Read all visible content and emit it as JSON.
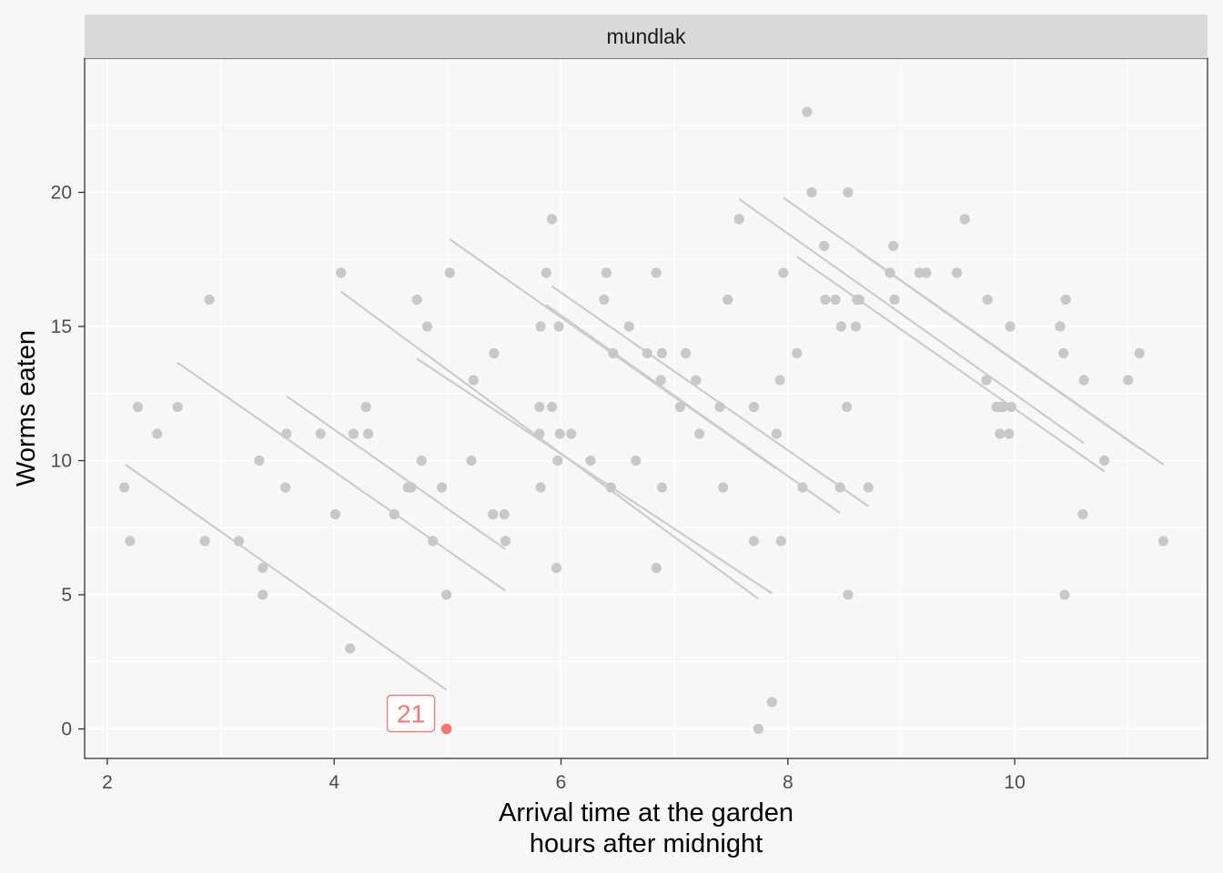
{
  "chart_data": {
    "type": "scatter",
    "facet": "mundlak",
    "xlabel": "Arrival time at the garden",
    "xlabel_sub": "hours after midnight",
    "ylabel": "Worms eaten",
    "xlim": [
      1.8,
      11.7
    ],
    "ylim": [
      -1.1,
      25.0
    ],
    "x_ticks": [
      2,
      4,
      6,
      8,
      10
    ],
    "y_ticks": [
      0,
      5,
      10,
      15,
      20
    ],
    "grid": true,
    "colors": {
      "point": "#c8c8c8",
      "line": "#cccccc",
      "highlight": "#f8766d",
      "panel": "#f7f7f7",
      "strip": "#d9d9d9",
      "grid": "#ffffff"
    },
    "points": [
      {
        "x": 2.15,
        "y": 9
      },
      {
        "x": 2.2,
        "y": 7
      },
      {
        "x": 2.27,
        "y": 12
      },
      {
        "x": 2.44,
        "y": 11
      },
      {
        "x": 2.62,
        "y": 12
      },
      {
        "x": 2.86,
        "y": 7
      },
      {
        "x": 2.9,
        "y": 16
      },
      {
        "x": 3.16,
        "y": 7
      },
      {
        "x": 3.34,
        "y": 10
      },
      {
        "x": 3.37,
        "y": 6
      },
      {
        "x": 3.37,
        "y": 5
      },
      {
        "x": 3.57,
        "y": 9
      },
      {
        "x": 3.58,
        "y": 11
      },
      {
        "x": 3.88,
        "y": 11
      },
      {
        "x": 4.01,
        "y": 8
      },
      {
        "x": 4.06,
        "y": 17
      },
      {
        "x": 4.14,
        "y": 3
      },
      {
        "x": 4.17,
        "y": 11
      },
      {
        "x": 4.28,
        "y": 12
      },
      {
        "x": 4.3,
        "y": 11
      },
      {
        "x": 4.53,
        "y": 8
      },
      {
        "x": 4.65,
        "y": 9
      },
      {
        "x": 4.68,
        "y": 9
      },
      {
        "x": 4.73,
        "y": 16
      },
      {
        "x": 4.77,
        "y": 10
      },
      {
        "x": 4.82,
        "y": 15
      },
      {
        "x": 4.87,
        "y": 7
      },
      {
        "x": 4.95,
        "y": 9
      },
      {
        "x": 4.99,
        "y": 5
      },
      {
        "x": 5.02,
        "y": 17
      },
      {
        "x": 5.21,
        "y": 10
      },
      {
        "x": 5.23,
        "y": 13
      },
      {
        "x": 5.4,
        "y": 8
      },
      {
        "x": 5.41,
        "y": 14
      },
      {
        "x": 5.5,
        "y": 8
      },
      {
        "x": 5.51,
        "y": 7
      },
      {
        "x": 5.81,
        "y": 12
      },
      {
        "x": 5.81,
        "y": 11
      },
      {
        "x": 5.82,
        "y": 15
      },
      {
        "x": 5.82,
        "y": 9
      },
      {
        "x": 5.87,
        "y": 17
      },
      {
        "x": 5.92,
        "y": 19
      },
      {
        "x": 5.92,
        "y": 12
      },
      {
        "x": 5.96,
        "y": 6
      },
      {
        "x": 5.97,
        "y": 10
      },
      {
        "x": 5.98,
        "y": 15
      },
      {
        "x": 5.99,
        "y": 11
      },
      {
        "x": 6.09,
        "y": 11
      },
      {
        "x": 6.26,
        "y": 10
      },
      {
        "x": 6.38,
        "y": 16
      },
      {
        "x": 6.4,
        "y": 17
      },
      {
        "x": 6.44,
        "y": 9
      },
      {
        "x": 6.46,
        "y": 14
      },
      {
        "x": 6.6,
        "y": 15
      },
      {
        "x": 6.66,
        "y": 10
      },
      {
        "x": 6.76,
        "y": 14
      },
      {
        "x": 6.84,
        "y": 17
      },
      {
        "x": 6.84,
        "y": 6
      },
      {
        "x": 6.88,
        "y": 13
      },
      {
        "x": 6.89,
        "y": 9
      },
      {
        "x": 6.89,
        "y": 14
      },
      {
        "x": 7.05,
        "y": 12
      },
      {
        "x": 7.1,
        "y": 14
      },
      {
        "x": 7.19,
        "y": 13
      },
      {
        "x": 7.22,
        "y": 11
      },
      {
        "x": 7.4,
        "y": 12
      },
      {
        "x": 7.43,
        "y": 9
      },
      {
        "x": 7.47,
        "y": 16
      },
      {
        "x": 7.57,
        "y": 19
      },
      {
        "x": 7.7,
        "y": 7
      },
      {
        "x": 7.7,
        "y": 12
      },
      {
        "x": 7.74,
        "y": 0
      },
      {
        "x": 7.86,
        "y": 1
      },
      {
        "x": 7.9,
        "y": 11
      },
      {
        "x": 7.93,
        "y": 13
      },
      {
        "x": 7.94,
        "y": 7
      },
      {
        "x": 7.96,
        "y": 17
      },
      {
        "x": 8.08,
        "y": 14
      },
      {
        "x": 8.13,
        "y": 9
      },
      {
        "x": 8.17,
        "y": 23
      },
      {
        "x": 8.21,
        "y": 20
      },
      {
        "x": 8.32,
        "y": 18
      },
      {
        "x": 8.33,
        "y": 16
      },
      {
        "x": 8.42,
        "y": 16
      },
      {
        "x": 8.46,
        "y": 9
      },
      {
        "x": 8.47,
        "y": 15
      },
      {
        "x": 8.52,
        "y": 12
      },
      {
        "x": 8.53,
        "y": 20
      },
      {
        "x": 8.53,
        "y": 5
      },
      {
        "x": 8.6,
        "y": 15
      },
      {
        "x": 8.61,
        "y": 16
      },
      {
        "x": 8.63,
        "y": 16
      },
      {
        "x": 8.71,
        "y": 9
      },
      {
        "x": 8.9,
        "y": 17
      },
      {
        "x": 8.93,
        "y": 18
      },
      {
        "x": 8.94,
        "y": 16
      },
      {
        "x": 9.16,
        "y": 17
      },
      {
        "x": 9.22,
        "y": 17
      },
      {
        "x": 9.49,
        "y": 17
      },
      {
        "x": 9.56,
        "y": 19
      },
      {
        "x": 9.75,
        "y": 13
      },
      {
        "x": 9.76,
        "y": 16
      },
      {
        "x": 9.84,
        "y": 12
      },
      {
        "x": 9.87,
        "y": 11
      },
      {
        "x": 9.88,
        "y": 12
      },
      {
        "x": 9.9,
        "y": 12
      },
      {
        "x": 9.95,
        "y": 11
      },
      {
        "x": 9.96,
        "y": 15
      },
      {
        "x": 9.97,
        "y": 12
      },
      {
        "x": 10.4,
        "y": 15
      },
      {
        "x": 10.43,
        "y": 14
      },
      {
        "x": 10.44,
        "y": 5
      },
      {
        "x": 10.45,
        "y": 16
      },
      {
        "x": 10.6,
        "y": 8
      },
      {
        "x": 10.61,
        "y": 13
      },
      {
        "x": 10.79,
        "y": 10
      },
      {
        "x": 11.0,
        "y": 13
      },
      {
        "x": 11.1,
        "y": 14
      },
      {
        "x": 11.31,
        "y": 7
      }
    ],
    "fit_lines": [
      {
        "x": [
          2.16,
          4.99
        ],
        "y": [
          9.85,
          1.45
        ]
      },
      {
        "x": [
          2.62,
          5.51
        ],
        "y": [
          13.65,
          5.15
        ]
      },
      {
        "x": [
          3.58,
          5.51
        ],
        "y": [
          12.4,
          6.7
        ]
      },
      {
        "x": [
          4.06,
          7.74
        ],
        "y": [
          16.3,
          4.85
        ]
      },
      {
        "x": [
          4.73,
          7.86
        ],
        "y": [
          13.8,
          5.05
        ]
      },
      {
        "x": [
          5.02,
          7.9
        ],
        "y": [
          18.25,
          9.7
        ]
      },
      {
        "x": [
          5.87,
          8.46
        ],
        "y": [
          15.8,
          8.05
        ]
      },
      {
        "x": [
          5.92,
          8.71
        ],
        "y": [
          16.5,
          8.3
        ]
      },
      {
        "x": [
          7.57,
          10.61
        ],
        "y": [
          19.75,
          10.65
        ]
      },
      {
        "x": [
          8.08,
          10.79
        ],
        "y": [
          17.6,
          9.6
        ]
      },
      {
        "x": [
          7.96,
          11.31
        ],
        "y": [
          19.8,
          9.85
        ]
      },
      {
        "x": [
          8.61,
          11.1
        ],
        "y": [
          17.85,
          10.45
        ]
      }
    ],
    "highlight": {
      "x": 4.99,
      "y": 0,
      "label": "21"
    }
  }
}
